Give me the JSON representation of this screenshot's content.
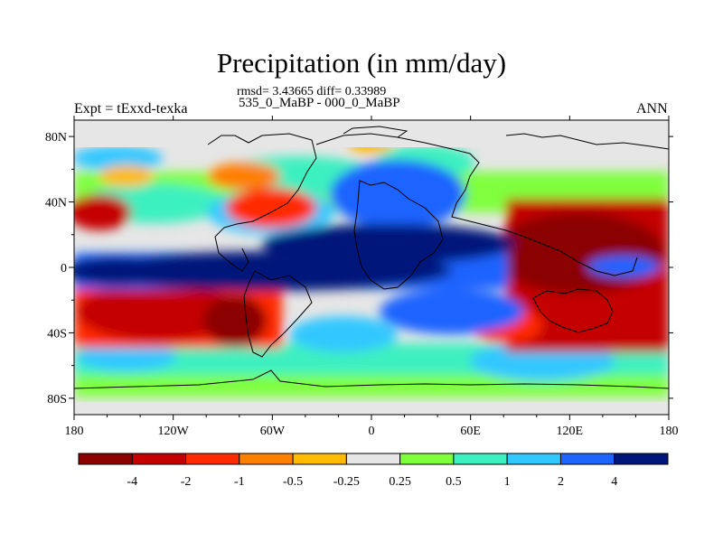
{
  "title": "Precipitation (in mm/day)",
  "stats": "rmsd= 3.43665 diff= 0.33989",
  "subtitle": "535_0_MaBP - 000_0_MaBP",
  "left_label": "Expt = tExxd-texka",
  "right_label": "ANN",
  "axes": {
    "x_ticks": [
      {
        "value": -180,
        "label": "180"
      },
      {
        "value": -120,
        "label": "120W"
      },
      {
        "value": -60,
        "label": "60W"
      },
      {
        "value": 0,
        "label": "0"
      },
      {
        "value": 60,
        "label": "60E"
      },
      {
        "value": 120,
        "label": "120E"
      },
      {
        "value": 180,
        "label": "180"
      }
    ],
    "y_ticks": [
      {
        "value": 80,
        "label": "80N"
      },
      {
        "value": 40,
        "label": "40N"
      },
      {
        "value": 0,
        "label": "0"
      },
      {
        "value": -40,
        "label": "40S"
      },
      {
        "value": -80,
        "label": "80S"
      }
    ],
    "lon_range": [
      -180,
      180
    ],
    "lat_range": [
      -90,
      90
    ]
  },
  "colorbar": {
    "colors": [
      "#8b0000",
      "#c40000",
      "#ff2a00",
      "#ff7f00",
      "#ffbb00",
      "#e6e6e6",
      "#7fff3c",
      "#3cf0c0",
      "#30c8ff",
      "#1e64ff",
      "#00167a"
    ],
    "labels": [
      "-4",
      "-2",
      "-1",
      "-0.5",
      "-0.25",
      "0.25",
      "0.5",
      "1",
      "2",
      "4"
    ]
  },
  "palette": {
    "dry_strong": "#8b0000",
    "dry": "#c40000",
    "dry_mid": "#ff2a00",
    "dry_light": "#ff7f00",
    "dry_faint": "#ffbb00",
    "neutral": "#e6e6e6",
    "wet_faint": "#7fff3c",
    "wet_light": "#3cf0c0",
    "wet_mid": "#30c8ff",
    "wet": "#1e64ff",
    "wet_strong": "#00167a"
  }
}
